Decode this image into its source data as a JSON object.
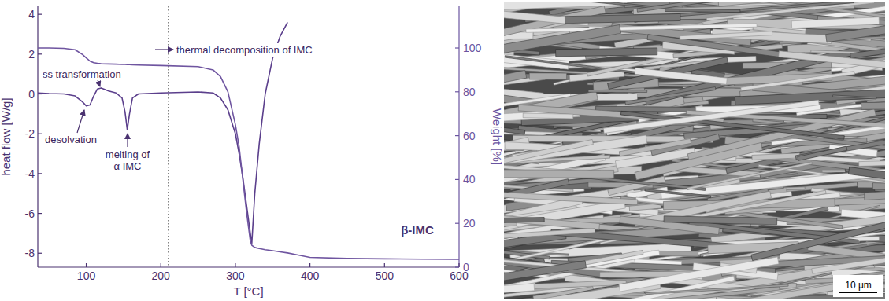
{
  "chart_data": {
    "type": "line",
    "title": "β-IMC",
    "x_label": "T [°C]",
    "y_label": "heat flow [W/g]",
    "y2_label": "Weight [%]",
    "x": [
      35,
      50,
      70,
      85,
      95,
      100,
      105,
      110,
      115,
      120,
      130,
      140,
      148,
      152,
      155,
      158,
      162,
      170,
      200,
      250,
      270,
      280,
      290,
      300,
      305,
      310,
      315,
      320,
      322,
      326,
      332,
      340,
      350,
      360,
      370,
      380,
      400,
      450,
      500,
      550,
      600
    ],
    "xlim": [
      35,
      600
    ],
    "xticks": [
      100,
      200,
      300,
      400,
      500,
      600
    ],
    "ylim": [
      -8.7,
      4.4
    ],
    "yticks": [
      -8,
      -6,
      -4,
      -2,
      0,
      2,
      4
    ],
    "y2lim": [
      0,
      119
    ],
    "y2ticks": [
      0,
      20,
      40,
      60,
      80,
      100
    ],
    "series": [
      {
        "color": "#5b3f8c",
        "values": [
          0.05,
          0.02,
          0,
          -0.1,
          -0.4,
          -0.6,
          -0.55,
          -0.1,
          0.25,
          0.3,
          0.15,
          0.05,
          -0.2,
          -0.9,
          -1.8,
          -1.0,
          -0.2,
          0,
          0.05,
          0.1,
          0.05,
          -0.2,
          -0.8,
          -2.0,
          -3.0,
          -4.2,
          -5.6,
          -7.0,
          -7.5,
          -5.0,
          -2.5,
          0,
          1.8,
          2.9,
          3.6,
          null,
          null,
          null,
          null,
          null,
          null
        ]
      },
      {
        "color": "#6f55a0",
        "axis": "y2",
        "values": [
          100,
          100,
          99.8,
          99.2,
          97,
          95.5,
          94,
          93.3,
          93,
          92.8,
          92.7,
          92.6,
          92.5,
          92.5,
          92.4,
          92.4,
          92.3,
          92.2,
          92,
          91.5,
          90,
          87,
          80,
          65,
          55,
          40,
          25,
          12,
          10,
          9,
          8.5,
          8,
          7.5,
          7,
          6.5,
          5.8,
          4.5,
          4,
          3.8,
          3.7,
          3.6
        ]
      }
    ],
    "reference_x": 210,
    "annotations": [
      {
        "text": "desolvation"
      },
      {
        "text": "ss transformation"
      },
      {
        "text": "melting of α IMC"
      },
      {
        "text": "thermal decomposition of IMC"
      }
    ]
  },
  "micrograph": {
    "scale_bar_label": "10 μm"
  }
}
